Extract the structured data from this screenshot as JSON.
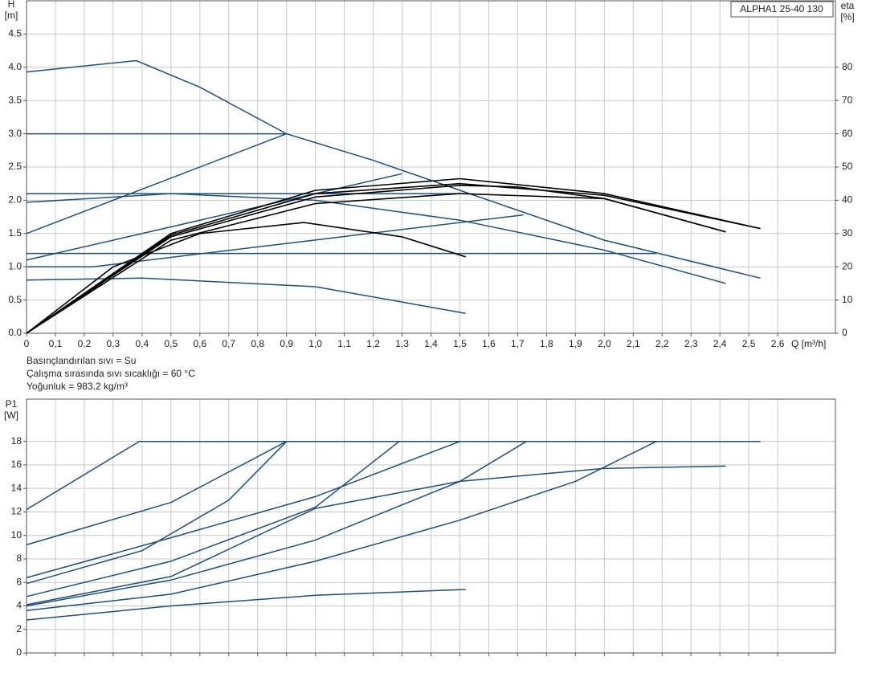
{
  "chart_data": [
    {
      "type": "line",
      "y_label": [
        "H",
        "[m]"
      ],
      "y2_label": [
        "eta",
        "[%]"
      ],
      "x_label": "Q [m³/h]",
      "annotation": "ALPHA1 25-40 130",
      "notes": [
        "Basınçlandırılan sıvı = Su",
        "Çalışma sırasında sıvı sıcaklığı = 60 °C",
        "Yoğunluk = 983.2 kg/m³"
      ],
      "grid": true,
      "show_xtick_labels": true,
      "xlim": [
        0,
        2.8
      ],
      "ylim": [
        0,
        5
      ],
      "y2lim": [
        0,
        100
      ],
      "xticks": [
        0,
        {
          "value": 0.1,
          "label": "0,1"
        },
        {
          "value": 0.2,
          "label": "0,2"
        },
        {
          "value": 0.3,
          "label": "0,3"
        },
        {
          "value": 0.4,
          "label": "0,4"
        },
        {
          "value": 0.5,
          "label": "0,5"
        },
        {
          "value": 0.6,
          "label": "0,6"
        },
        {
          "value": 0.7,
          "label": "0,7"
        },
        {
          "value": 0.8,
          "label": "0,8"
        },
        {
          "value": 0.9,
          "label": "0,9"
        },
        {
          "value": 1,
          "label": "1,0"
        },
        {
          "value": 1.1,
          "label": "1,1"
        },
        {
          "value": 1.2,
          "label": "1,2"
        },
        {
          "value": 1.3,
          "label": "1,3"
        },
        {
          "value": 1.4,
          "label": "1,4"
        },
        {
          "value": 1.5,
          "label": "1,5"
        },
        {
          "value": 1.6,
          "label": "1,6"
        },
        {
          "value": 1.7,
          "label": "1,7"
        },
        {
          "value": 1.8,
          "label": "1,8"
        },
        {
          "value": 1.9,
          "label": "1,9"
        },
        {
          "value": 2,
          "label": "2,0"
        },
        {
          "value": 2.1,
          "label": "2,1"
        },
        {
          "value": 2.2,
          "label": "2,2"
        },
        {
          "value": 2.3,
          "label": "2,3"
        },
        {
          "value": 2.4,
          "label": "2,4"
        },
        {
          "value": 2.5,
          "label": "2,5"
        },
        {
          "value": 2.6,
          "label": "2,6"
        }
      ],
      "yticks": [
        {
          "value": 0,
          "label": "0.0"
        },
        0.5,
        {
          "value": 1,
          "label": "1.0"
        },
        1.5,
        {
          "value": 2,
          "label": "2.0"
        },
        2.5,
        {
          "value": 3,
          "label": "3.0"
        },
        3.5,
        {
          "value": 4,
          "label": "4.0"
        },
        4.5
      ],
      "y2ticks": [
        0,
        10,
        20,
        30,
        40,
        50,
        60,
        70,
        80
      ],
      "series": [
        {
          "color": "#1f4e79",
          "x": [
            0,
            0.38,
            0.6,
            0.9,
            1.2,
            1.5,
            2.0,
            2.54
          ],
          "values": [
            3.93,
            4.1,
            3.7,
            3.0,
            2.6,
            2.15,
            1.4,
            0.83
          ]
        },
        {
          "color": "#1f4e79",
          "x": [
            0,
            0.9
          ],
          "values": [
            3.0,
            3.0
          ]
        },
        {
          "color": "#1f4e79",
          "x": [
            0,
            0.9
          ],
          "values": [
            1.5,
            3.0
          ]
        },
        {
          "color": "#1f4e79",
          "x": [
            0,
            1.5
          ],
          "values": [
            2.1,
            2.1
          ]
        },
        {
          "color": "#1f4e79",
          "x": [
            0,
            0.5,
            1.0,
            1.5,
            2.0,
            2.42
          ],
          "values": [
            1.97,
            2.1,
            2.0,
            1.7,
            1.25,
            0.75
          ]
        },
        {
          "color": "#1f4e79",
          "x": [
            0,
            1.3
          ],
          "values": [
            1.1,
            2.4
          ]
        },
        {
          "color": "#1f4e79",
          "x": [
            0,
            2.18
          ],
          "values": [
            1.2,
            1.2
          ]
        },
        {
          "color": "#1f4e79",
          "x": [
            0,
            0.23,
            1.72
          ],
          "values": [
            1.0,
            1.0,
            1.78
          ]
        },
        {
          "color": "#1f4e79",
          "x": [
            0,
            0.4,
            1.0,
            1.52
          ],
          "values": [
            0.8,
            0.83,
            0.7,
            0.3
          ]
        },
        {
          "color": "#000000",
          "axis": "y2",
          "x": [
            0,
            0.3,
            0.6,
            0.96,
            1.3,
            1.52
          ],
          "values": [
            0,
            20,
            30,
            33.3,
            29,
            23
          ]
        },
        {
          "color": "#000000",
          "axis": "y2",
          "x": [
            0,
            0.5,
            1.0,
            1.5,
            2.0,
            2.42
          ],
          "values": [
            0,
            28,
            39,
            42,
            40.5,
            30.5
          ]
        },
        {
          "color": "#000000",
          "axis": "y2",
          "x": [
            0,
            0.5,
            1.0,
            1.5,
            1.7,
            2.0,
            2.42
          ],
          "values": [
            0,
            29,
            41,
            44.5,
            44,
            40.5,
            30.5
          ]
        },
        {
          "color": "#000000",
          "axis": "y2",
          "x": [
            0,
            0.5,
            1.0,
            1.5,
            2.0,
            2.54
          ],
          "values": [
            0,
            29.5,
            42,
            45,
            41.5,
            31.5
          ]
        },
        {
          "color": "#000000",
          "axis": "y2",
          "x": [
            0,
            0.5,
            1.0,
            1.5,
            2.0,
            2.54
          ],
          "values": [
            0,
            30,
            43,
            46.5,
            42,
            31.5
          ]
        }
      ]
    },
    {
      "type": "line",
      "y_label": [
        "P1",
        "[W]"
      ],
      "grid": true,
      "show_xtick_labels": false,
      "xlim": [
        0,
        2.8
      ],
      "ylim": [
        0,
        21.6
      ],
      "xticks": [
        0,
        0.1,
        0.2,
        0.3,
        0.4,
        0.5,
        0.6,
        0.7,
        0.8,
        0.9,
        1,
        1.1,
        1.2,
        1.3,
        1.4,
        1.5,
        1.6,
        1.7,
        1.8,
        1.9,
        2,
        2.1,
        2.2,
        2.3,
        2.4,
        2.5,
        2.6
      ],
      "yticks": [
        0,
        2,
        4,
        6,
        8,
        10,
        12,
        14,
        16,
        18
      ],
      "series": [
        {
          "color": "#1f4e79",
          "x": [
            0,
            0.39,
            2.54
          ],
          "values": [
            12.2,
            18,
            18
          ]
        },
        {
          "color": "#1f4e79",
          "x": [
            0,
            0.5,
            0.9
          ],
          "values": [
            9.2,
            12.8,
            18
          ]
        },
        {
          "color": "#1f4e79",
          "x": [
            0,
            0.4,
            0.7,
            0.9
          ],
          "values": [
            5.9,
            8.7,
            13,
            18
          ]
        },
        {
          "color": "#1f4e79",
          "x": [
            0,
            0.5,
            1.0,
            1.5
          ],
          "values": [
            6.4,
            9.8,
            13.3,
            18
          ]
        },
        {
          "color": "#1f4e79",
          "x": [
            0,
            0.5,
            1.0,
            1.29
          ],
          "values": [
            4.8,
            7.8,
            12.4,
            18
          ]
        },
        {
          "color": "#1f4e79",
          "x": [
            0,
            0.5,
            1.0,
            1.5,
            1.73
          ],
          "values": [
            4.0,
            6.2,
            9.6,
            14.6,
            18
          ]
        },
        {
          "color": "#1f4e79",
          "x": [
            0,
            0.5,
            1.0,
            1.5,
            2.0,
            2.42
          ],
          "values": [
            4.1,
            6.5,
            12.3,
            14.6,
            15.7,
            15.9
          ]
        },
        {
          "color": "#1f4e79",
          "x": [
            0,
            0.5,
            1.0,
            1.5,
            1.9,
            2.18
          ],
          "values": [
            3.6,
            5.0,
            7.8,
            11.3,
            14.6,
            18
          ]
        },
        {
          "color": "#1f4e79",
          "x": [
            0,
            0.5,
            1.0,
            1.52
          ],
          "values": [
            2.8,
            4.0,
            4.9,
            5.4
          ]
        }
      ]
    }
  ]
}
